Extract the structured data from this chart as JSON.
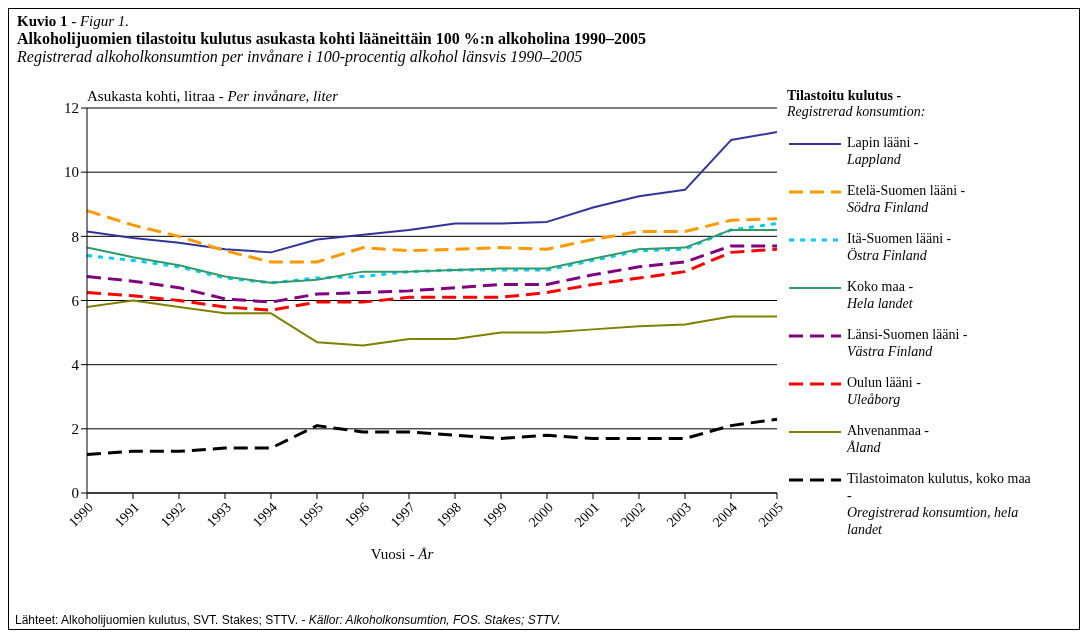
{
  "chart_data": {
    "type": "line",
    "title": "Alkoholijuomien tilastoitu kulutus asukasta kohti lääneittäin 100 %:n alkoholina 1990–2005",
    "subtitle": "Registrerad alkoholkonsumtion per invånare i 100-procentig alkohol länsvis 1990–2005",
    "ylabel": "Asukasta kohti, litraa - Per invånare, liter",
    "xlabel": "Vuosi - År",
    "legend_title": "Tilastoitu kulutus - Registrerad konsumtion:",
    "annotations": [
      "Kuvio 1 - Figur 1.",
      "Lähteet: Alkoholijuomien kulutus, SVT. Stakes; STTV. - Källor: Alkoholkonsumtion, FOS. Stakes; STTV."
    ],
    "categories": [
      "1990",
      "1991",
      "1992",
      "1993",
      "1994",
      "1995",
      "1996",
      "1997",
      "1998",
      "1999",
      "2000",
      "2001",
      "2002",
      "2003",
      "2004",
      "2005"
    ],
    "ylim": [
      0,
      12
    ],
    "yticks": [
      0,
      2,
      4,
      6,
      8,
      10,
      12
    ],
    "grid": "y",
    "legend": "right",
    "marker": "none",
    "series": [
      {
        "name": "Lapin lääni - Lappland",
        "color": "#333399",
        "line_style": "solid",
        "values": [
          8.15,
          7.95,
          7.8,
          7.6,
          7.5,
          7.9,
          8.05,
          8.2,
          8.4,
          8.4,
          8.45,
          8.9,
          9.25,
          9.45,
          11.0,
          11.25
        ]
      },
      {
        "name": "Etelä-Suomen lääni - Södra Finland",
        "color": "#ff9900",
        "line_style": "dashed",
        "values": [
          8.8,
          8.35,
          8.0,
          7.55,
          7.2,
          7.2,
          7.65,
          7.55,
          7.6,
          7.65,
          7.6,
          7.9,
          8.15,
          8.15,
          8.5,
          8.55
        ]
      },
      {
        "name": "Itä-Suomen lääni - Östra Finland",
        "color": "#00ccff",
        "line_style": "dotted",
        "values": [
          7.4,
          7.25,
          7.05,
          6.7,
          6.55,
          6.7,
          6.75,
          6.9,
          6.95,
          6.95,
          6.95,
          7.25,
          7.55,
          7.6,
          8.2,
          8.4
        ]
      },
      {
        "name": "Koko maa - Hela landet",
        "color": "#339966",
        "line_style": "solid",
        "values": [
          7.65,
          7.35,
          7.1,
          6.75,
          6.55,
          6.65,
          6.9,
          6.9,
          6.95,
          7.0,
          7.0,
          7.3,
          7.6,
          7.65,
          8.2,
          8.2
        ]
      },
      {
        "name": "Länsi-Suomen lääni - Västra Finland",
        "color": "#800080",
        "line_style": "dashed",
        "values": [
          6.75,
          6.6,
          6.4,
          6.05,
          5.95,
          6.2,
          6.25,
          6.3,
          6.4,
          6.5,
          6.5,
          6.8,
          7.05,
          7.2,
          7.7,
          7.7
        ]
      },
      {
        "name": "Oulun lääni - Uleåborg",
        "color": "#ff0000",
        "line_style": "dashed",
        "values": [
          6.25,
          6.15,
          6.0,
          5.8,
          5.7,
          5.95,
          5.95,
          6.1,
          6.1,
          6.1,
          6.25,
          6.5,
          6.7,
          6.9,
          7.5,
          7.6
        ]
      },
      {
        "name": "Ahvenanmaa - Åland",
        "color": "#808000",
        "line_style": "solid",
        "values": [
          5.8,
          6.0,
          5.8,
          5.6,
          5.6,
          4.7,
          4.6,
          4.8,
          4.8,
          5.0,
          5.0,
          5.1,
          5.2,
          5.25,
          5.5,
          5.5
        ]
      },
      {
        "name": "Tilastoimaton kulutus, koko maa - Oregistrerad konsumtion, hela landet",
        "color": "#000000",
        "line_style": "dashed",
        "values": [
          1.2,
          1.3,
          1.3,
          1.4,
          1.4,
          2.1,
          1.9,
          1.9,
          1.8,
          1.7,
          1.8,
          1.7,
          1.7,
          1.7,
          2.1,
          2.3
        ]
      }
    ]
  }
}
